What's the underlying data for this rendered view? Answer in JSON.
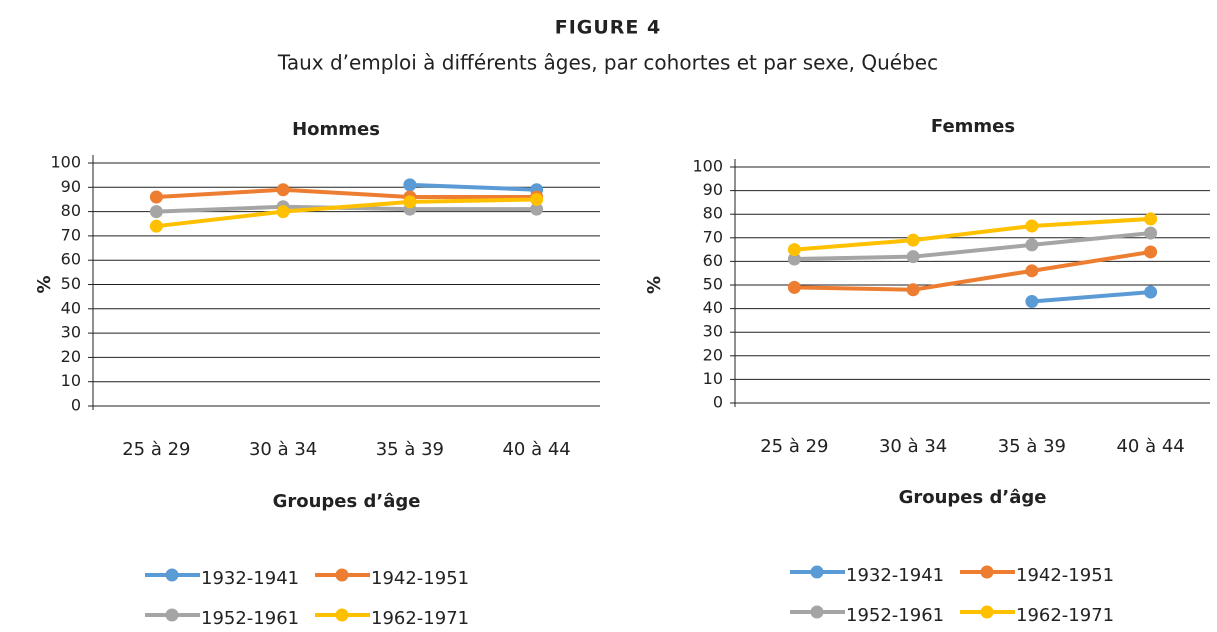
{
  "header": {
    "label": "FIGURE 4",
    "title": "Taux d’emploi à différents âges, par cohortes et par sexe, Québec"
  },
  "chart_data": [
    {
      "type": "line",
      "title": "Hommes",
      "y_label": "%",
      "x_label": "Groupes d’âge",
      "categories": [
        "25 à 29",
        "30 à 34",
        "35 à 39",
        "40 à 44"
      ],
      "ylim": [
        0,
        100
      ],
      "yticks": [
        0,
        10,
        20,
        30,
        40,
        50,
        60,
        70,
        80,
        90,
        100
      ],
      "grid": true,
      "legend": "bottom",
      "series": [
        {
          "name": "1932-1941",
          "color": "#5b9bd5",
          "values": [
            null,
            null,
            91,
            89
          ]
        },
        {
          "name": "1942-1951",
          "color": "#ed7d31",
          "values": [
            86,
            89,
            86,
            86
          ]
        },
        {
          "name": "1952-1961",
          "color": "#a5a5a5",
          "values": [
            80,
            82,
            81,
            81
          ]
        },
        {
          "name": "1962-1971",
          "color": "#ffc000",
          "values": [
            74,
            80,
            84,
            85
          ]
        }
      ]
    },
    {
      "type": "line",
      "title": "Femmes",
      "y_label": "%",
      "x_label": "Groupes d’âge",
      "categories": [
        "25 à 29",
        "30 à 34",
        "35 à 39",
        "40 à 44"
      ],
      "ylim": [
        0,
        100
      ],
      "yticks": [
        0,
        10,
        20,
        30,
        40,
        50,
        60,
        70,
        80,
        90,
        100
      ],
      "grid": true,
      "legend": "bottom",
      "series": [
        {
          "name": "1932-1941",
          "color": "#5b9bd5",
          "values": [
            null,
            null,
            43,
            47
          ]
        },
        {
          "name": "1942-1951",
          "color": "#ed7d31",
          "values": [
            49,
            48,
            56,
            64
          ]
        },
        {
          "name": "1952-1961",
          "color": "#a5a5a5",
          "values": [
            61,
            62,
            67,
            72
          ]
        },
        {
          "name": "1962-1971",
          "color": "#ffc000",
          "values": [
            65,
            69,
            75,
            78
          ]
        }
      ]
    }
  ]
}
